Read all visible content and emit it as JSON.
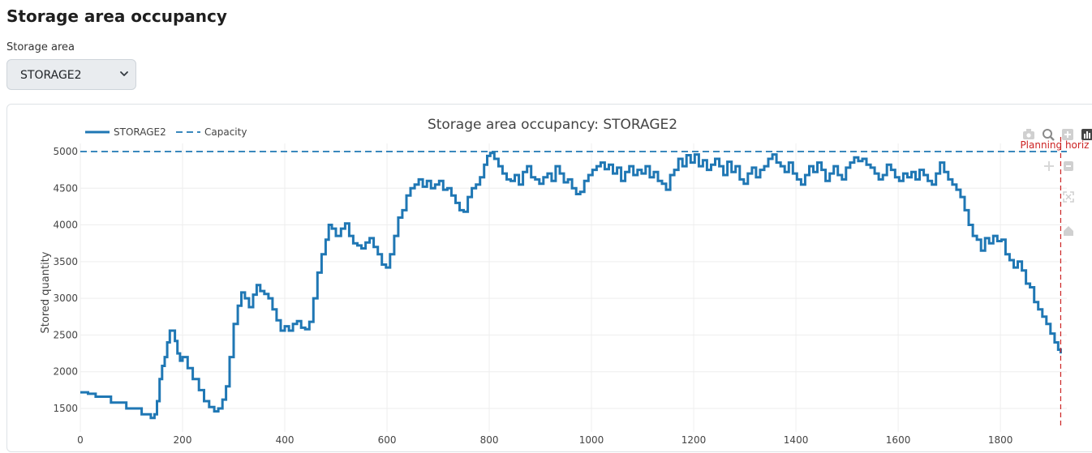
{
  "page": {
    "title": "Storage area occupancy"
  },
  "filter": {
    "label": "Storage area",
    "selected": "STORAGE2"
  },
  "chart_data": {
    "type": "line",
    "title": "Storage area occupancy: STORAGE2",
    "xlabel": "",
    "ylabel": "Stored quantity",
    "xlim": [
      0,
      1930
    ],
    "ylim": [
      1180,
      5110
    ],
    "x_ticks": [
      0,
      200,
      400,
      600,
      800,
      1000,
      1200,
      1400,
      1600,
      1800
    ],
    "y_ticks": [
      1500,
      2000,
      2500,
      3000,
      3500,
      4000,
      4500,
      5000
    ],
    "grid": true,
    "legend_position": "top-left",
    "series": [
      {
        "name": "STORAGE2",
        "color": "#1f77b4",
        "style": "step",
        "points": [
          [
            0,
            1720
          ],
          [
            10,
            1720
          ],
          [
            15,
            1700
          ],
          [
            30,
            1660
          ],
          [
            60,
            1580
          ],
          [
            90,
            1500
          ],
          [
            120,
            1420
          ],
          [
            138,
            1370
          ],
          [
            145,
            1420
          ],
          [
            150,
            1600
          ],
          [
            155,
            1900
          ],
          [
            160,
            2080
          ],
          [
            165,
            2200
          ],
          [
            170,
            2400
          ],
          [
            175,
            2560
          ],
          [
            180,
            2560
          ],
          [
            185,
            2420
          ],
          [
            190,
            2250
          ],
          [
            195,
            2150
          ],
          [
            200,
            2200
          ],
          [
            210,
            2050
          ],
          [
            220,
            1900
          ],
          [
            232,
            1750
          ],
          [
            242,
            1600
          ],
          [
            252,
            1520
          ],
          [
            262,
            1460
          ],
          [
            270,
            1500
          ],
          [
            278,
            1620
          ],
          [
            285,
            1800
          ],
          [
            292,
            2200
          ],
          [
            300,
            2650
          ],
          [
            308,
            2900
          ],
          [
            315,
            3080
          ],
          [
            322,
            3000
          ],
          [
            330,
            2880
          ],
          [
            338,
            3050
          ],
          [
            345,
            3180
          ],
          [
            352,
            3100
          ],
          [
            360,
            3060
          ],
          [
            368,
            3000
          ],
          [
            376,
            2850
          ],
          [
            384,
            2700
          ],
          [
            392,
            2560
          ],
          [
            400,
            2620
          ],
          [
            408,
            2560
          ],
          [
            416,
            2650
          ],
          [
            424,
            2690
          ],
          [
            432,
            2600
          ],
          [
            440,
            2580
          ],
          [
            448,
            2680
          ],
          [
            456,
            3000
          ],
          [
            464,
            3350
          ],
          [
            472,
            3600
          ],
          [
            480,
            3800
          ],
          [
            486,
            4000
          ],
          [
            492,
            3950
          ],
          [
            500,
            3850
          ],
          [
            510,
            3950
          ],
          [
            518,
            4020
          ],
          [
            526,
            3850
          ],
          [
            534,
            3750
          ],
          [
            542,
            3720
          ],
          [
            550,
            3680
          ],
          [
            558,
            3760
          ],
          [
            566,
            3820
          ],
          [
            574,
            3700
          ],
          [
            582,
            3600
          ],
          [
            590,
            3460
          ],
          [
            598,
            3420
          ],
          [
            606,
            3600
          ],
          [
            614,
            3850
          ],
          [
            622,
            4100
          ],
          [
            630,
            4200
          ],
          [
            638,
            4400
          ],
          [
            646,
            4500
          ],
          [
            654,
            4550
          ],
          [
            662,
            4620
          ],
          [
            670,
            4520
          ],
          [
            678,
            4600
          ],
          [
            686,
            4500
          ],
          [
            694,
            4550
          ],
          [
            702,
            4600
          ],
          [
            710,
            4480
          ],
          [
            718,
            4500
          ],
          [
            726,
            4400
          ],
          [
            734,
            4300
          ],
          [
            742,
            4200
          ],
          [
            750,
            4180
          ],
          [
            758,
            4380
          ],
          [
            766,
            4500
          ],
          [
            774,
            4550
          ],
          [
            782,
            4650
          ],
          [
            790,
            4820
          ],
          [
            796,
            4940
          ],
          [
            802,
            4980
          ],
          [
            810,
            4900
          ],
          [
            818,
            4800
          ],
          [
            826,
            4700
          ],
          [
            834,
            4620
          ],
          [
            842,
            4600
          ],
          [
            850,
            4680
          ],
          [
            858,
            4550
          ],
          [
            866,
            4720
          ],
          [
            874,
            4800
          ],
          [
            882,
            4650
          ],
          [
            890,
            4620
          ],
          [
            898,
            4560
          ],
          [
            906,
            4650
          ],
          [
            914,
            4700
          ],
          [
            922,
            4600
          ],
          [
            930,
            4800
          ],
          [
            938,
            4700
          ],
          [
            946,
            4580
          ],
          [
            954,
            4620
          ],
          [
            962,
            4500
          ],
          [
            970,
            4420
          ],
          [
            978,
            4450
          ],
          [
            986,
            4600
          ],
          [
            994,
            4680
          ],
          [
            1002,
            4750
          ],
          [
            1010,
            4800
          ],
          [
            1018,
            4850
          ],
          [
            1026,
            4760
          ],
          [
            1034,
            4820
          ],
          [
            1042,
            4700
          ],
          [
            1050,
            4780
          ],
          [
            1058,
            4600
          ],
          [
            1066,
            4720
          ],
          [
            1074,
            4800
          ],
          [
            1082,
            4680
          ],
          [
            1090,
            4750
          ],
          [
            1098,
            4700
          ],
          [
            1106,
            4800
          ],
          [
            1114,
            4650
          ],
          [
            1122,
            4720
          ],
          [
            1130,
            4600
          ],
          [
            1138,
            4560
          ],
          [
            1146,
            4480
          ],
          [
            1154,
            4680
          ],
          [
            1162,
            4750
          ],
          [
            1170,
            4900
          ],
          [
            1178,
            4800
          ],
          [
            1186,
            4950
          ],
          [
            1194,
            4850
          ],
          [
            1202,
            4960
          ],
          [
            1210,
            4800
          ],
          [
            1218,
            4880
          ],
          [
            1226,
            4750
          ],
          [
            1234,
            4820
          ],
          [
            1242,
            4900
          ],
          [
            1250,
            4800
          ],
          [
            1258,
            4680
          ],
          [
            1266,
            4860
          ],
          [
            1274,
            4720
          ],
          [
            1282,
            4800
          ],
          [
            1290,
            4620
          ],
          [
            1298,
            4560
          ],
          [
            1306,
            4700
          ],
          [
            1314,
            4780
          ],
          [
            1322,
            4650
          ],
          [
            1330,
            4750
          ],
          [
            1338,
            4800
          ],
          [
            1346,
            4900
          ],
          [
            1354,
            4960
          ],
          [
            1362,
            4850
          ],
          [
            1370,
            4800
          ],
          [
            1378,
            4720
          ],
          [
            1386,
            4850
          ],
          [
            1394,
            4700
          ],
          [
            1402,
            4620
          ],
          [
            1410,
            4550
          ],
          [
            1418,
            4680
          ],
          [
            1426,
            4800
          ],
          [
            1434,
            4720
          ],
          [
            1442,
            4850
          ],
          [
            1450,
            4750
          ],
          [
            1458,
            4600
          ],
          [
            1466,
            4700
          ],
          [
            1474,
            4800
          ],
          [
            1482,
            4680
          ],
          [
            1490,
            4620
          ],
          [
            1498,
            4780
          ],
          [
            1506,
            4850
          ],
          [
            1514,
            4920
          ],
          [
            1522,
            4870
          ],
          [
            1530,
            4900
          ],
          [
            1538,
            4820
          ],
          [
            1546,
            4780
          ],
          [
            1554,
            4700
          ],
          [
            1562,
            4620
          ],
          [
            1570,
            4680
          ],
          [
            1578,
            4820
          ],
          [
            1586,
            4750
          ],
          [
            1594,
            4650
          ],
          [
            1602,
            4600
          ],
          [
            1610,
            4700
          ],
          [
            1618,
            4650
          ],
          [
            1626,
            4720
          ],
          [
            1634,
            4620
          ],
          [
            1642,
            4750
          ],
          [
            1650,
            4680
          ],
          [
            1658,
            4600
          ],
          [
            1666,
            4550
          ],
          [
            1674,
            4700
          ],
          [
            1682,
            4850
          ],
          [
            1690,
            4720
          ],
          [
            1698,
            4620
          ],
          [
            1706,
            4550
          ],
          [
            1714,
            4480
          ],
          [
            1722,
            4380
          ],
          [
            1730,
            4200
          ],
          [
            1738,
            4000
          ],
          [
            1746,
            3850
          ],
          [
            1754,
            3800
          ],
          [
            1762,
            3650
          ],
          [
            1770,
            3820
          ],
          [
            1778,
            3750
          ],
          [
            1786,
            3850
          ],
          [
            1794,
            3780
          ],
          [
            1802,
            3800
          ],
          [
            1810,
            3600
          ],
          [
            1818,
            3520
          ],
          [
            1826,
            3420
          ],
          [
            1834,
            3500
          ],
          [
            1842,
            3380
          ],
          [
            1850,
            3200
          ],
          [
            1858,
            3150
          ],
          [
            1866,
            2950
          ],
          [
            1874,
            2850
          ],
          [
            1882,
            2750
          ],
          [
            1890,
            2650
          ],
          [
            1898,
            2520
          ],
          [
            1906,
            2400
          ],
          [
            1913,
            2300
          ],
          [
            1918,
            2250
          ]
        ]
      },
      {
        "name": "Capacity",
        "color": "#1f77b4",
        "style": "dash",
        "points": [
          [
            0,
            5000
          ],
          [
            1930,
            5000
          ]
        ]
      }
    ],
    "annotations": [
      {
        "text": "Planning horiz",
        "x": 1918,
        "color": "#cc2222"
      }
    ]
  }
}
